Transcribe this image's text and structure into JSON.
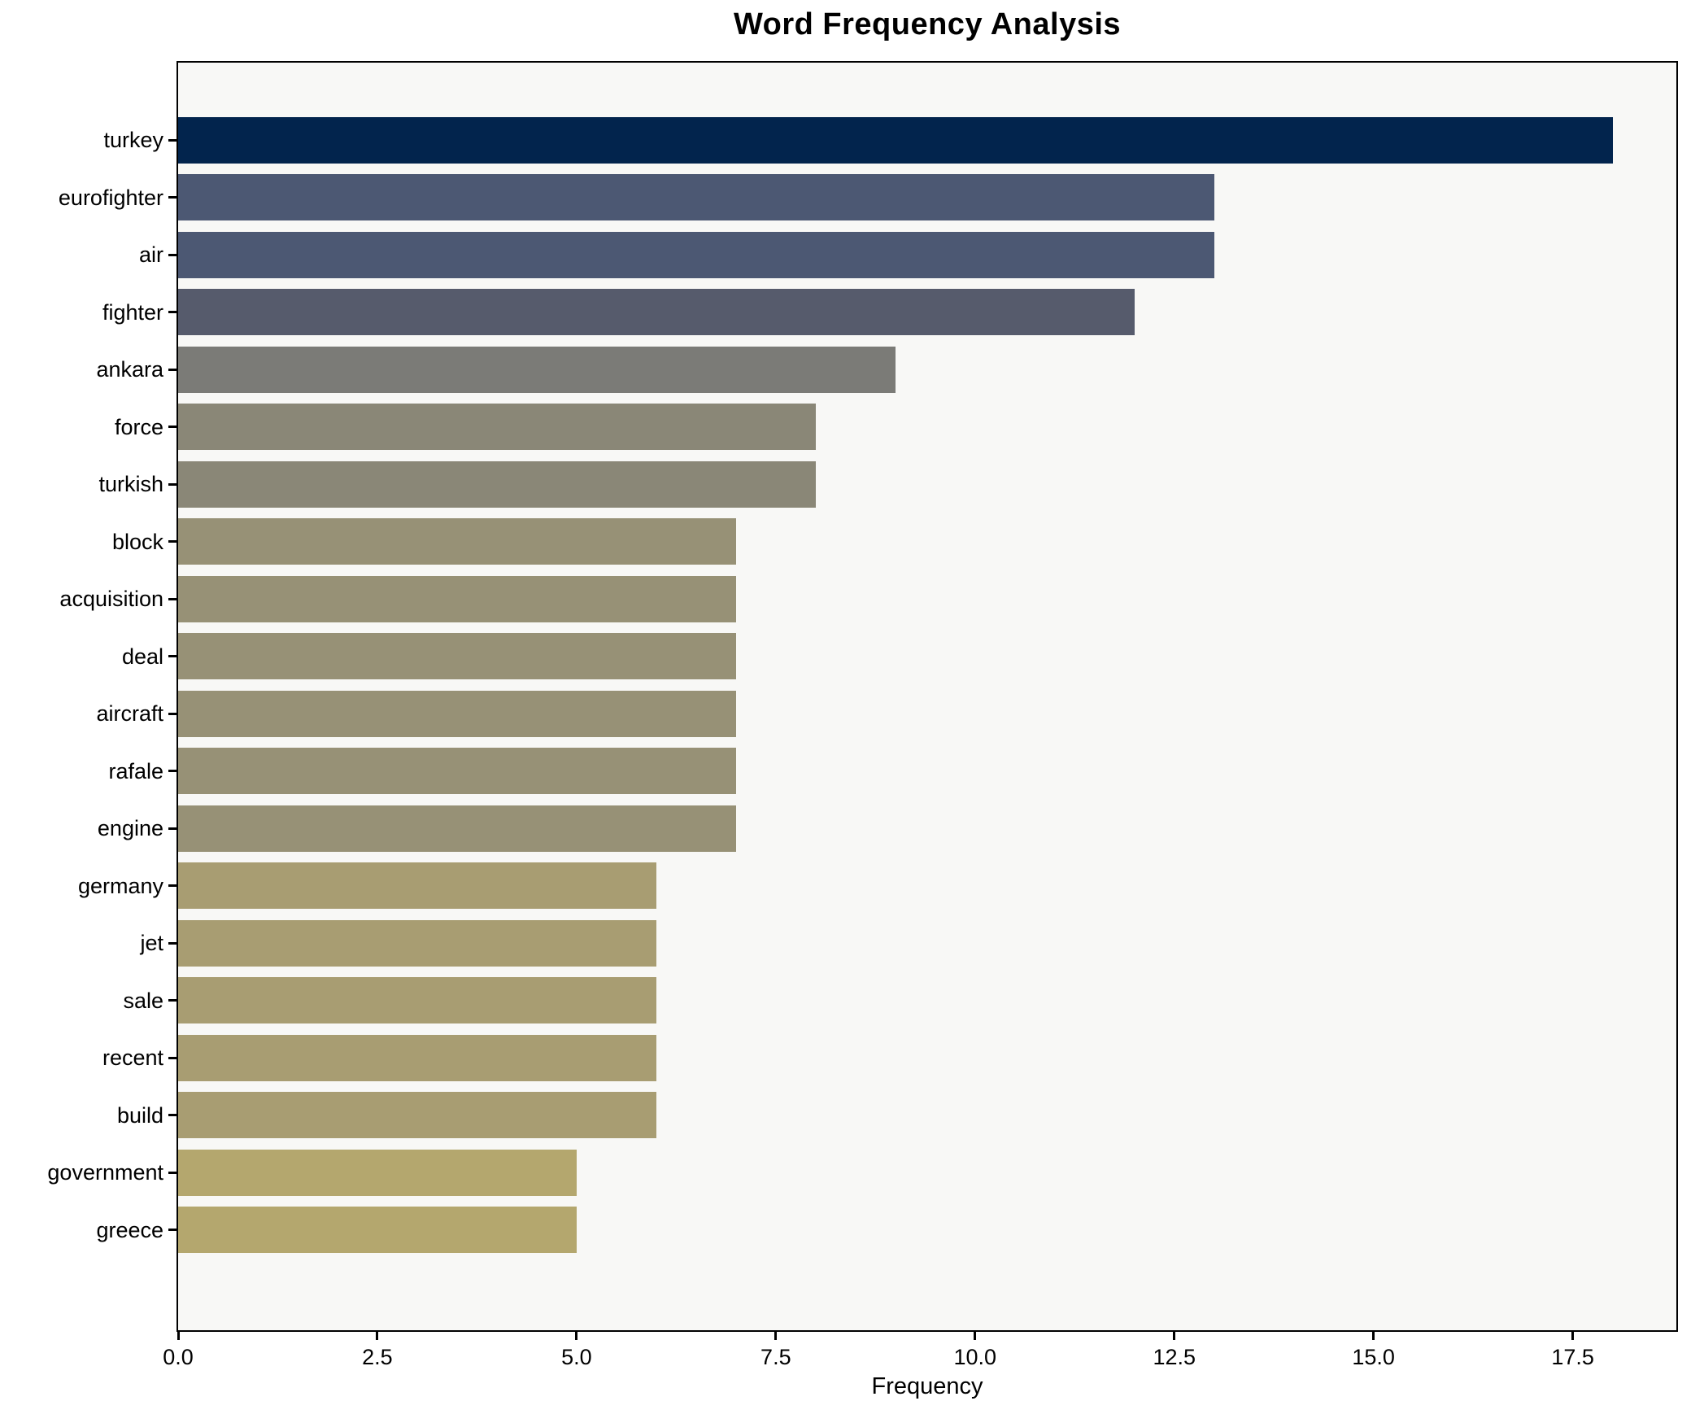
{
  "chart_data": {
    "type": "bar",
    "orientation": "horizontal",
    "title": "Word Frequency Analysis",
    "xlabel": "Frequency",
    "ylabel": "",
    "categories": [
      "turkey",
      "eurofighter",
      "air",
      "fighter",
      "ankara",
      "force",
      "turkish",
      "block",
      "acquisition",
      "deal",
      "aircraft",
      "rafale",
      "engine",
      "germany",
      "jet",
      "sale",
      "recent",
      "build",
      "government",
      "greece"
    ],
    "values": [
      18,
      13,
      13,
      12,
      9,
      8,
      8,
      7,
      7,
      7,
      7,
      7,
      7,
      6,
      6,
      6,
      6,
      6,
      5,
      5
    ],
    "bar_colors": [
      "#02244d",
      "#4c5873",
      "#4c5873",
      "#565b6c",
      "#7b7b77",
      "#8a8777",
      "#8a8777",
      "#979176",
      "#979176",
      "#979176",
      "#979176",
      "#979176",
      "#979176",
      "#a89d72",
      "#a89d72",
      "#a89d72",
      "#a89d72",
      "#a89d72",
      "#b4a76e",
      "#b4a76e"
    ],
    "xlim": [
      0,
      18.8
    ],
    "x_tick_values": [
      0,
      2.5,
      5,
      7.5,
      10,
      12.5,
      15,
      17.5
    ],
    "x_tick_labels": [
      "0.0",
      "2.5",
      "5.0",
      "7.5",
      "10.0",
      "12.5",
      "15.0",
      "17.5"
    ],
    "grid": false,
    "legend": null,
    "plot_background": "#f8f8f6",
    "spine_color": "#000000"
  }
}
